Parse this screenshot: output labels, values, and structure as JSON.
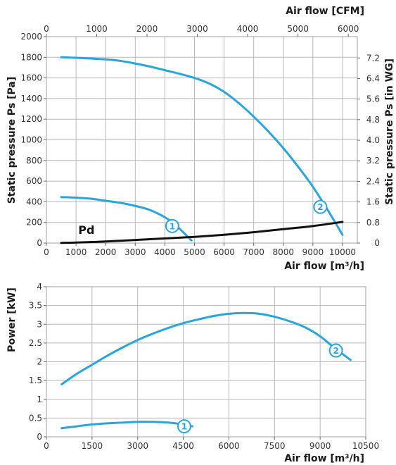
{
  "colors": {
    "fan_curve": "#2aa5dc",
    "pd_curve": "#111111",
    "grid": "#b8b8b8"
  },
  "chart_data": [
    {
      "type": "line",
      "xlabel": "Air flow [m³/h]",
      "x2label": "Air flow [CFM]",
      "ylabel": "Static pressure Ps [Pa]",
      "y2label": "Static pressure Ps [in WG]",
      "xlim": [
        0,
        10500
      ],
      "xticks": [
        0,
        1000,
        2000,
        3000,
        4000,
        5000,
        6000,
        7000,
        8000,
        9000,
        10000
      ],
      "x2lim": [
        0,
        6180
      ],
      "x2ticks": [
        0,
        1000,
        2000,
        3000,
        4000,
        5000,
        6000
      ],
      "ylim": [
        0,
        2000
      ],
      "yticks": [
        0,
        200,
        400,
        600,
        800,
        1000,
        1200,
        1400,
        1600,
        1800,
        2000
      ],
      "y2lim": [
        0,
        8.03
      ],
      "y2ticks": [
        0,
        0.8,
        1.6,
        2.4,
        3.2,
        4.0,
        4.8,
        5.6,
        6.4,
        7.2
      ],
      "grid": true,
      "series": [
        {
          "name": "1",
          "x": [
            500,
            1000,
            1500,
            2000,
            2500,
            3000,
            3500,
            4000,
            4300,
            4600,
            4900
          ],
          "y": [
            445,
            440,
            430,
            410,
            390,
            360,
            320,
            250,
            190,
            110,
            25
          ]
        },
        {
          "name": "2",
          "x": [
            500,
            1000,
            1500,
            2000,
            2500,
            3000,
            3500,
            4000,
            4500,
            5000,
            5500,
            6000,
            6500,
            7000,
            7500,
            8000,
            8500,
            9000,
            9500,
            10000
          ],
          "y": [
            1800,
            1795,
            1788,
            1780,
            1765,
            1740,
            1710,
            1675,
            1640,
            1600,
            1545,
            1465,
            1355,
            1225,
            1080,
            920,
            740,
            545,
            320,
            80
          ]
        },
        {
          "name": "Pd",
          "x": [
            500,
            1000,
            2000,
            3000,
            4000,
            5000,
            6000,
            7000,
            8000,
            9000,
            10000
          ],
          "y": [
            2,
            5,
            15,
            30,
            45,
            60,
            80,
            105,
            135,
            165,
            205
          ]
        }
      ],
      "annotations": [
        {
          "text": "1",
          "x": 4250,
          "y": 165
        },
        {
          "text": "2",
          "x": 9250,
          "y": 350
        },
        {
          "text": "Pd",
          "x": 1350,
          "y": 130
        }
      ]
    },
    {
      "type": "line",
      "xlabel": "Air flow [m³/h]",
      "ylabel": "Power [kW]",
      "xlim": [
        0,
        10500
      ],
      "xticks": [
        0,
        1500,
        3000,
        4500,
        6000,
        7500,
        9000,
        10500
      ],
      "ylim": [
        0,
        4
      ],
      "yticks": [
        0,
        0.5,
        1,
        1.5,
        2,
        2.5,
        3,
        3.5,
        4
      ],
      "grid": true,
      "series": [
        {
          "name": "1",
          "x": [
            500,
            1000,
            1500,
            2000,
            2500,
            3000,
            3500,
            4000,
            4500,
            4800
          ],
          "y": [
            0.23,
            0.28,
            0.33,
            0.36,
            0.38,
            0.4,
            0.4,
            0.38,
            0.33,
            0.28
          ]
        },
        {
          "name": "2",
          "x": [
            500,
            1000,
            1500,
            2000,
            2500,
            3000,
            3500,
            4000,
            4500,
            5000,
            5500,
            6000,
            6500,
            7000,
            7500,
            8000,
            8500,
            9000,
            9500,
            10000
          ],
          "y": [
            1.4,
            1.68,
            1.92,
            2.16,
            2.38,
            2.58,
            2.75,
            2.9,
            3.03,
            3.13,
            3.22,
            3.28,
            3.3,
            3.28,
            3.2,
            3.08,
            2.92,
            2.68,
            2.35,
            2.05
          ]
        }
      ],
      "annotations": [
        {
          "text": "1",
          "x": 4530,
          "y": 0.28
        },
        {
          "text": "2",
          "x": 9520,
          "y": 2.3
        }
      ]
    }
  ]
}
